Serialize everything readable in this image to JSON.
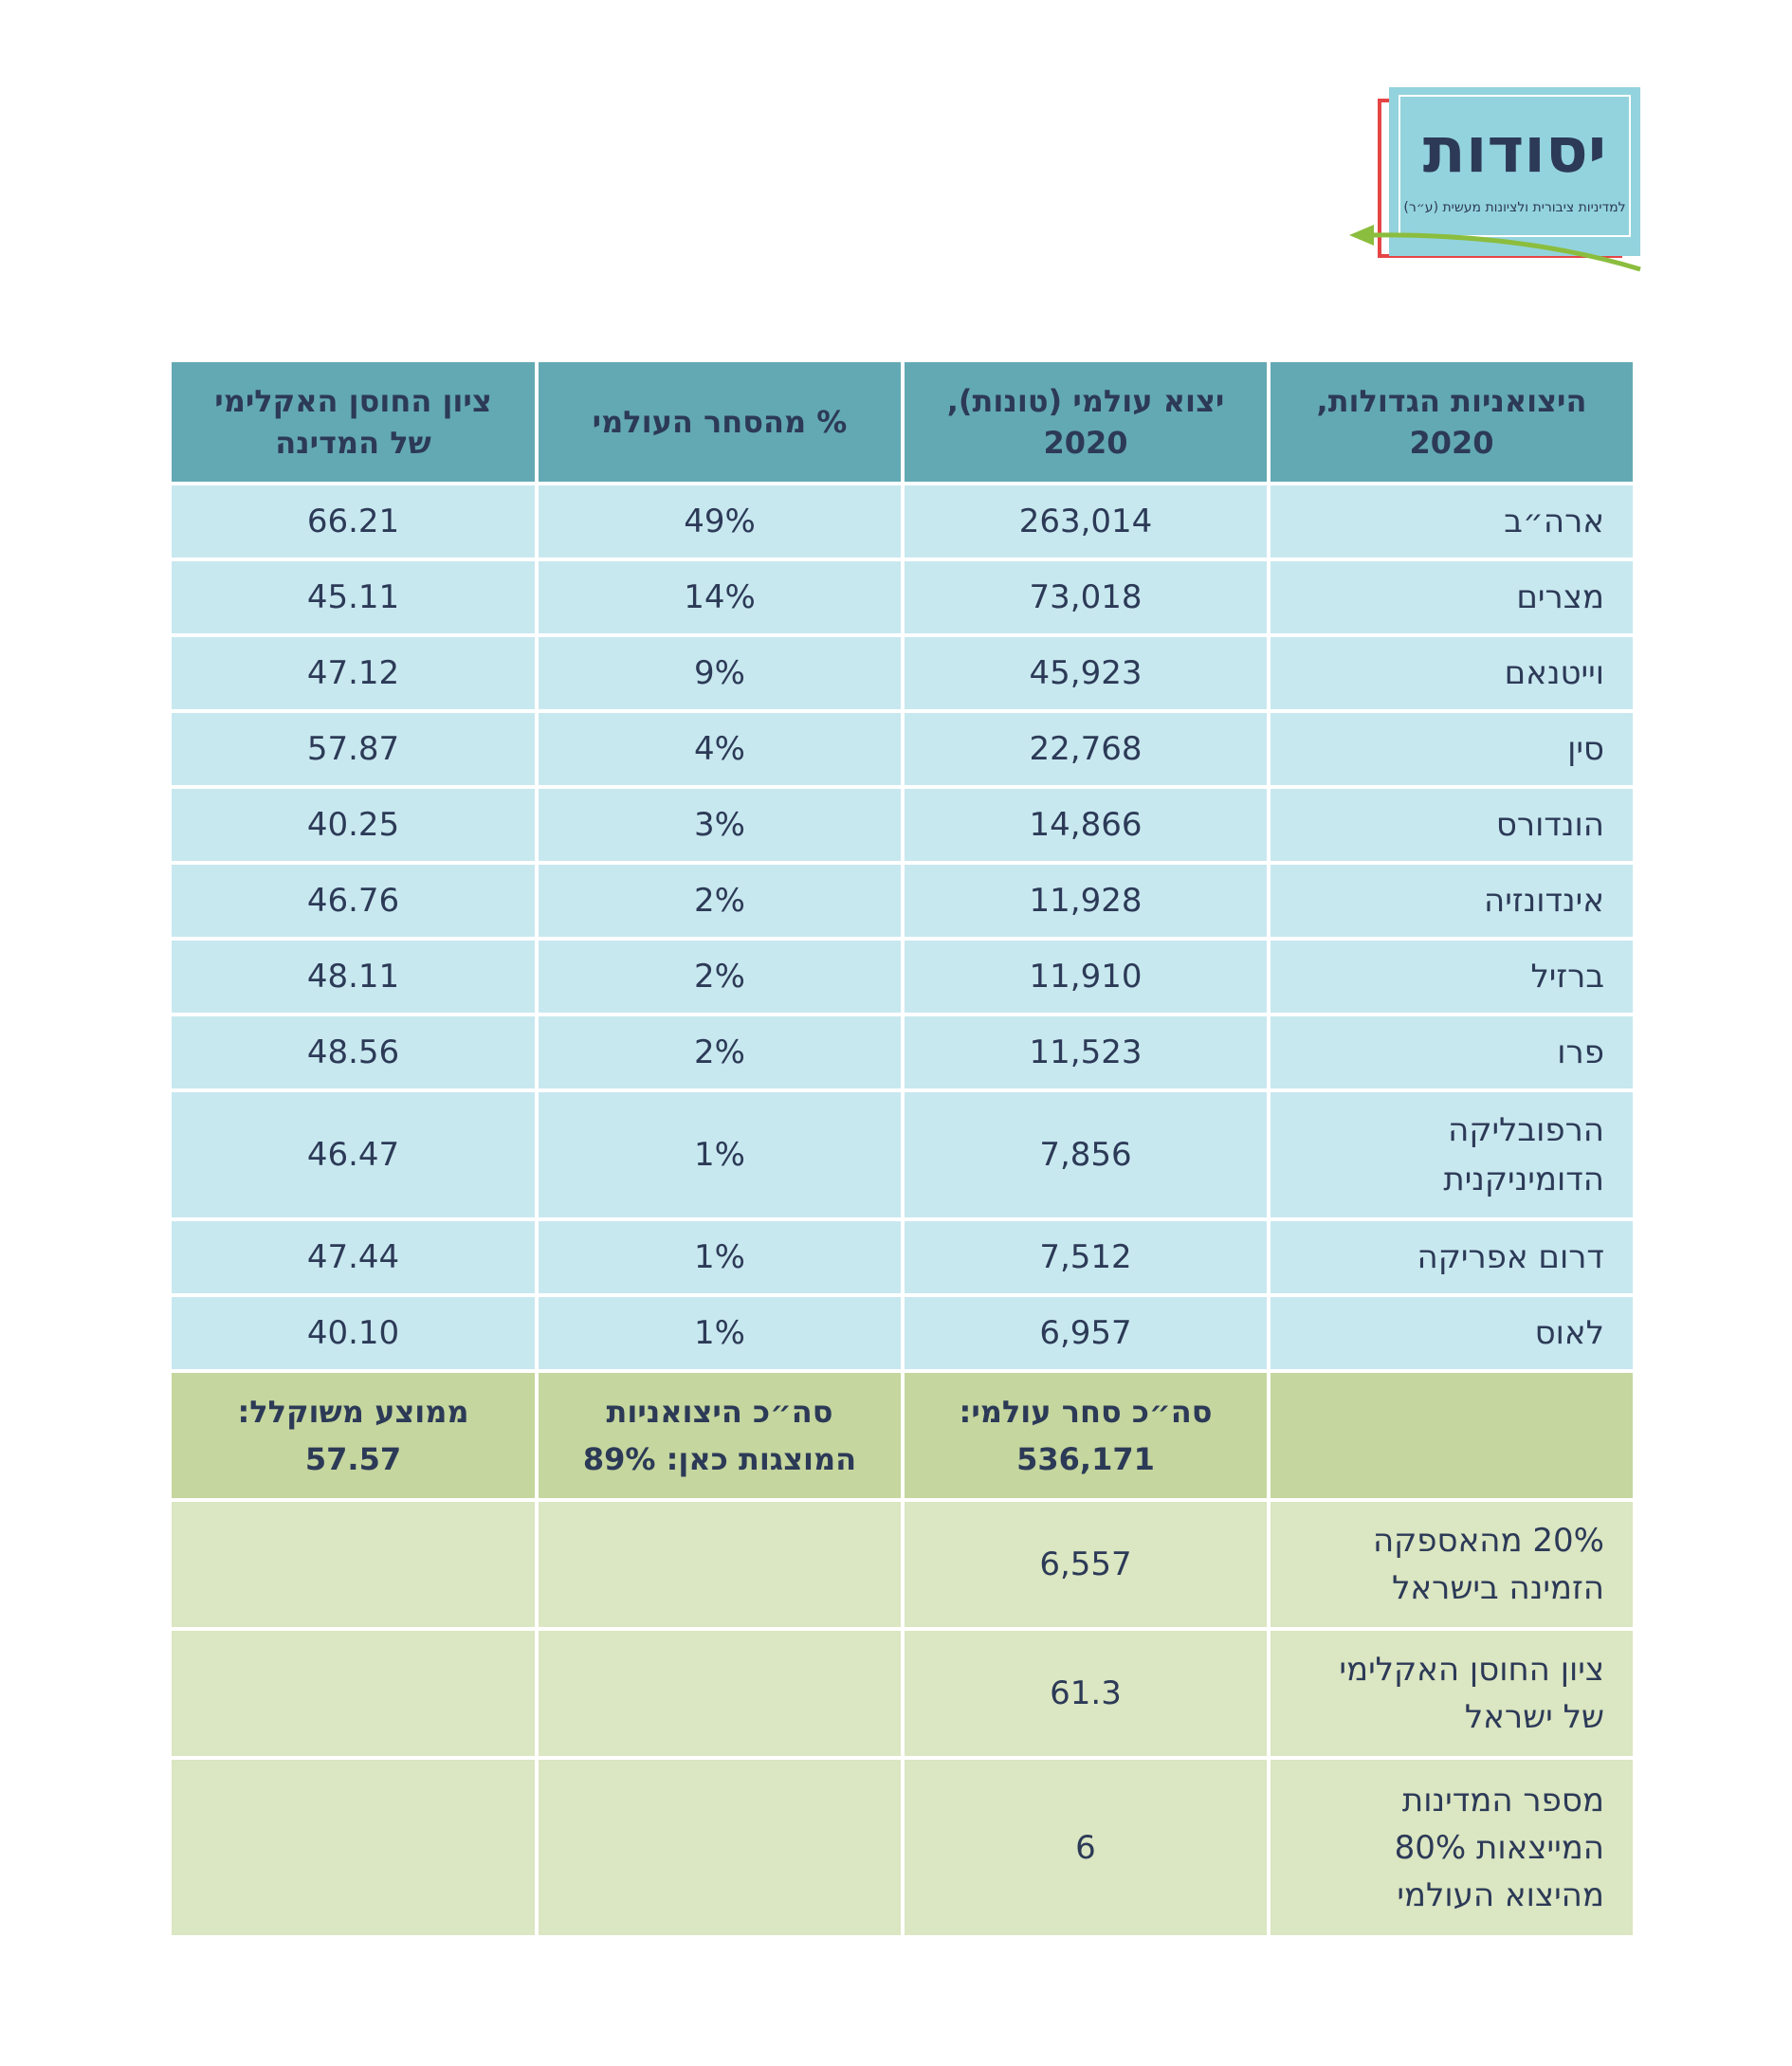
{
  "logo": {
    "name": "יסודות",
    "tagline": "למדיניות ציבורית ולציונות מעשית (ע״ר)"
  },
  "colors": {
    "header_bg": "#63a9b3",
    "row_bg": "#c8e8ef",
    "summary_bg": "#c5d69e",
    "footer_bg": "#dbe6c2",
    "text": "#2c3a57"
  },
  "table": {
    "headers": [
      [
        "היצואניות הגדולות,",
        "2020"
      ],
      [
        "יצוא עולמי (טונות),",
        "2020"
      ],
      [
        "% מהסחר העולמי"
      ],
      [
        "ציון החוסן האקלימי",
        "של המדינה"
      ]
    ],
    "rows": [
      {
        "country": [
          "ארה״ב"
        ],
        "export": "263,014",
        "share": "49%",
        "score": "66.21"
      },
      {
        "country": [
          "מצרים"
        ],
        "export": "73,018",
        "share": "14%",
        "score": "45.11"
      },
      {
        "country": [
          "וייטנאם"
        ],
        "export": "45,923",
        "share": "9%",
        "score": "47.12"
      },
      {
        "country": [
          "סין"
        ],
        "export": "22,768",
        "share": "4%",
        "score": "57.87"
      },
      {
        "country": [
          "הונדורס"
        ],
        "export": "14,866",
        "share": "3%",
        "score": "40.25"
      },
      {
        "country": [
          "אינדונזיה"
        ],
        "export": "11,928",
        "share": "2%",
        "score": "46.76"
      },
      {
        "country": [
          "ברזיל"
        ],
        "export": "11,910",
        "share": "2%",
        "score": "48.11"
      },
      {
        "country": [
          "פרו"
        ],
        "export": "11,523",
        "share": "2%",
        "score": "48.56"
      },
      {
        "country": [
          "הרפובליקה",
          "הדומיניקנית"
        ],
        "export": "7,856",
        "share": "1%",
        "score": "46.47"
      },
      {
        "country": [
          "דרום אפריקה"
        ],
        "export": "7,512",
        "share": "1%",
        "score": "47.44"
      },
      {
        "country": [
          "לאוס"
        ],
        "export": "6,957",
        "share": "1%",
        "score": "40.10"
      }
    ],
    "summary": {
      "blank": "",
      "total_trade": [
        "סה״כ סחר עולמי:",
        "536,171"
      ],
      "total_share": [
        "סה״כ היצואניות",
        "המוצגות כאן: 89%"
      ],
      "weighted_avg": [
        "ממוצע משוקלל:",
        "57.57"
      ]
    },
    "footer": [
      {
        "label": [
          "20% מהאספקה",
          "הזמינה בישראל"
        ],
        "value": "6,557"
      },
      {
        "label": [
          "ציון החוסן האקלימי",
          "של ישראל"
        ],
        "value": "61.3"
      },
      {
        "label": [
          "מספר המדינות",
          "המייצאות 80%",
          "מהיצוא העולמי"
        ],
        "value": "6"
      }
    ]
  }
}
